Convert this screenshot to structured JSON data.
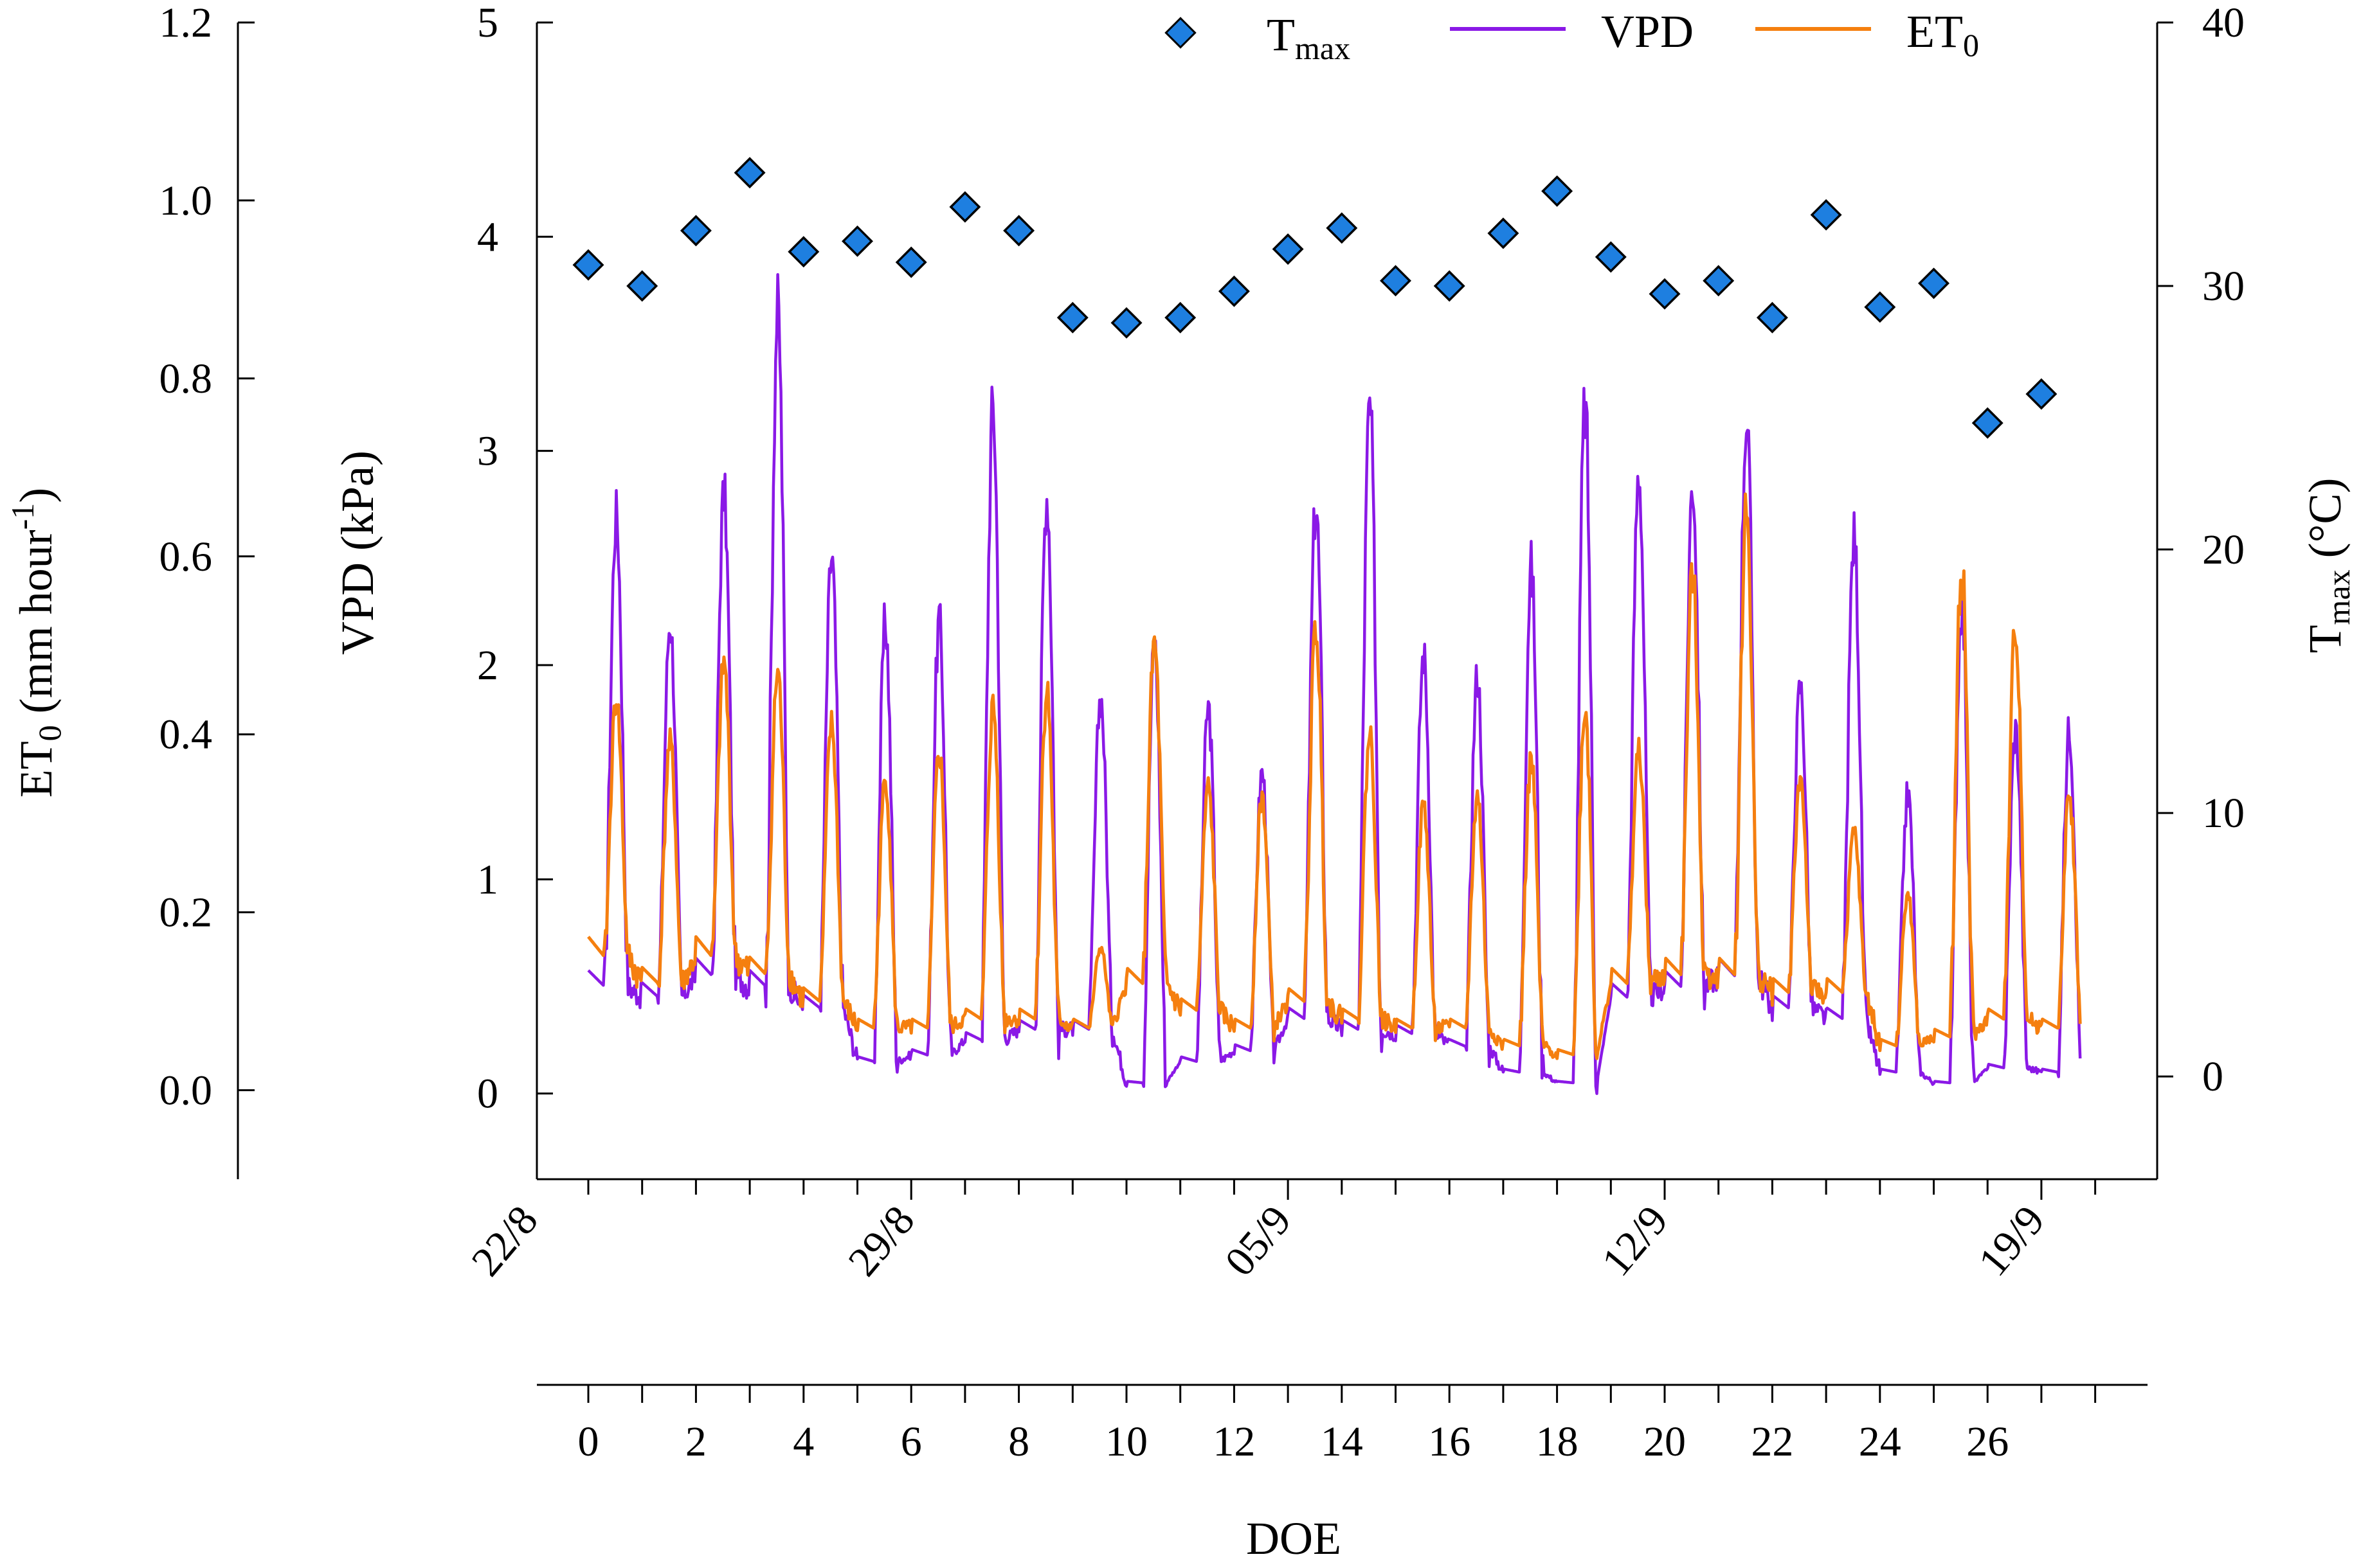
{
  "chart_data": {
    "type": "line",
    "xlabel": "DOE",
    "x_range": [
      -1,
      28.8
    ],
    "doe_ticks": [
      "0",
      "2",
      "4",
      "6",
      "8",
      "10",
      "12",
      "14",
      "16",
      "18",
      "20",
      "22",
      "24",
      "26"
    ],
    "date_ticks": [
      {
        "label": "22/8",
        "doe": -1
      },
      {
        "label": "29/8",
        "doe": 6
      },
      {
        "label": "05/9",
        "doe": 13
      },
      {
        "label": "12/9",
        "doe": 20
      },
      {
        "label": "19/9",
        "doe": 27
      }
    ],
    "axes": {
      "et0": {
        "label_main": "ET",
        "label_sub": "0",
        "label_unit": " (mm hour",
        "label_sup": "-1",
        "label_close": ")",
        "range": [
          -0.1,
          1.2
        ],
        "ticks": [
          "1.2",
          "1.0",
          "0.8",
          "0.6",
          "0.4",
          "0.2",
          "0.0"
        ]
      },
      "vpd": {
        "label": "VPD (kPa)",
        "range": [
          -0.4,
          5
        ],
        "ticks": [
          "5",
          "4",
          "3",
          "2",
          "1",
          "0"
        ]
      },
      "tmax": {
        "label_main": "T",
        "label_sub": "max",
        "label_unit": " (°C)",
        "range": [
          -3.9,
          40
        ],
        "ticks": [
          "40",
          "30",
          "20",
          "10",
          "0"
        ]
      }
    },
    "legend": {
      "tmax_main": "T",
      "tmax_sub": "max",
      "vpd": "VPD",
      "et0_main": "ET",
      "et0_sub": "0"
    },
    "colors": {
      "tmax": "#1e7fe0",
      "tmax_edge": "#000000",
      "vpd": "#8a19e6",
      "et0": "#f57f0f"
    },
    "series": [
      {
        "name": "Tmax",
        "axis": "tmax",
        "doe": [
          0,
          1,
          2,
          3,
          4,
          5,
          6,
          7,
          8,
          9,
          10,
          11,
          12,
          13,
          14,
          15,
          16,
          17,
          18,
          19,
          20,
          21,
          22,
          23,
          24,
          25,
          26,
          27
        ],
        "values": [
          30.8,
          30.0,
          32.1,
          34.3,
          31.3,
          31.7,
          30.9,
          33.0,
          32.1,
          28.8,
          28.6,
          28.8,
          29.8,
          31.4,
          32.2,
          30.2,
          30.0,
          32.0,
          33.6,
          31.1,
          29.7,
          30.2,
          28.8,
          32.7,
          29.2,
          30.1,
          24.8,
          25.9
        ]
      },
      {
        "name": "VPD",
        "axis": "vpd",
        "peaks": [
          2.7,
          2.2,
          2.8,
          3.65,
          2.5,
          2.2,
          2.2,
          3.2,
          2.8,
          1.85,
          2.1,
          1.8,
          1.5,
          2.75,
          3.2,
          2.05,
          1.95,
          2.45,
          3.2,
          2.9,
          2.85,
          3.15,
          1.9,
          2.6,
          1.4,
          2.3,
          1.7
        ],
        "night_min": [
          0.5,
          0.45,
          0.55,
          0.5,
          0.4,
          0.15,
          0.18,
          0.25,
          0.3,
          0.3,
          0.05,
          0.15,
          0.2,
          0.35,
          0.3,
          0.28,
          0.22,
          0.1,
          0.05,
          0.45,
          0.5,
          0.55,
          0.4,
          0.35,
          0.1,
          0.05,
          0.12,
          0.1
        ]
      },
      {
        "name": "ET0",
        "axis": "et0",
        "peaks": [
          0.44,
          0.39,
          0.48,
          0.47,
          0.41,
          0.35,
          0.38,
          0.43,
          0.45,
          0.16,
          0.5,
          0.34,
          0.33,
          0.52,
          0.4,
          0.32,
          0.33,
          0.37,
          0.43,
          0.38,
          0.58,
          0.65,
          0.35,
          0.29,
          0.22,
          0.59,
          0.52
        ],
        "night_min": [
          0.15,
          0.12,
          0.15,
          0.13,
          0.1,
          0.07,
          0.07,
          0.08,
          0.08,
          0.07,
          0.12,
          0.09,
          0.07,
          0.1,
          0.08,
          0.07,
          0.07,
          0.05,
          0.04,
          0.12,
          0.13,
          0.13,
          0.11,
          0.11,
          0.05,
          0.06,
          0.08,
          0.07
        ],
        "last_day_peak": 0.33
      }
    ]
  }
}
